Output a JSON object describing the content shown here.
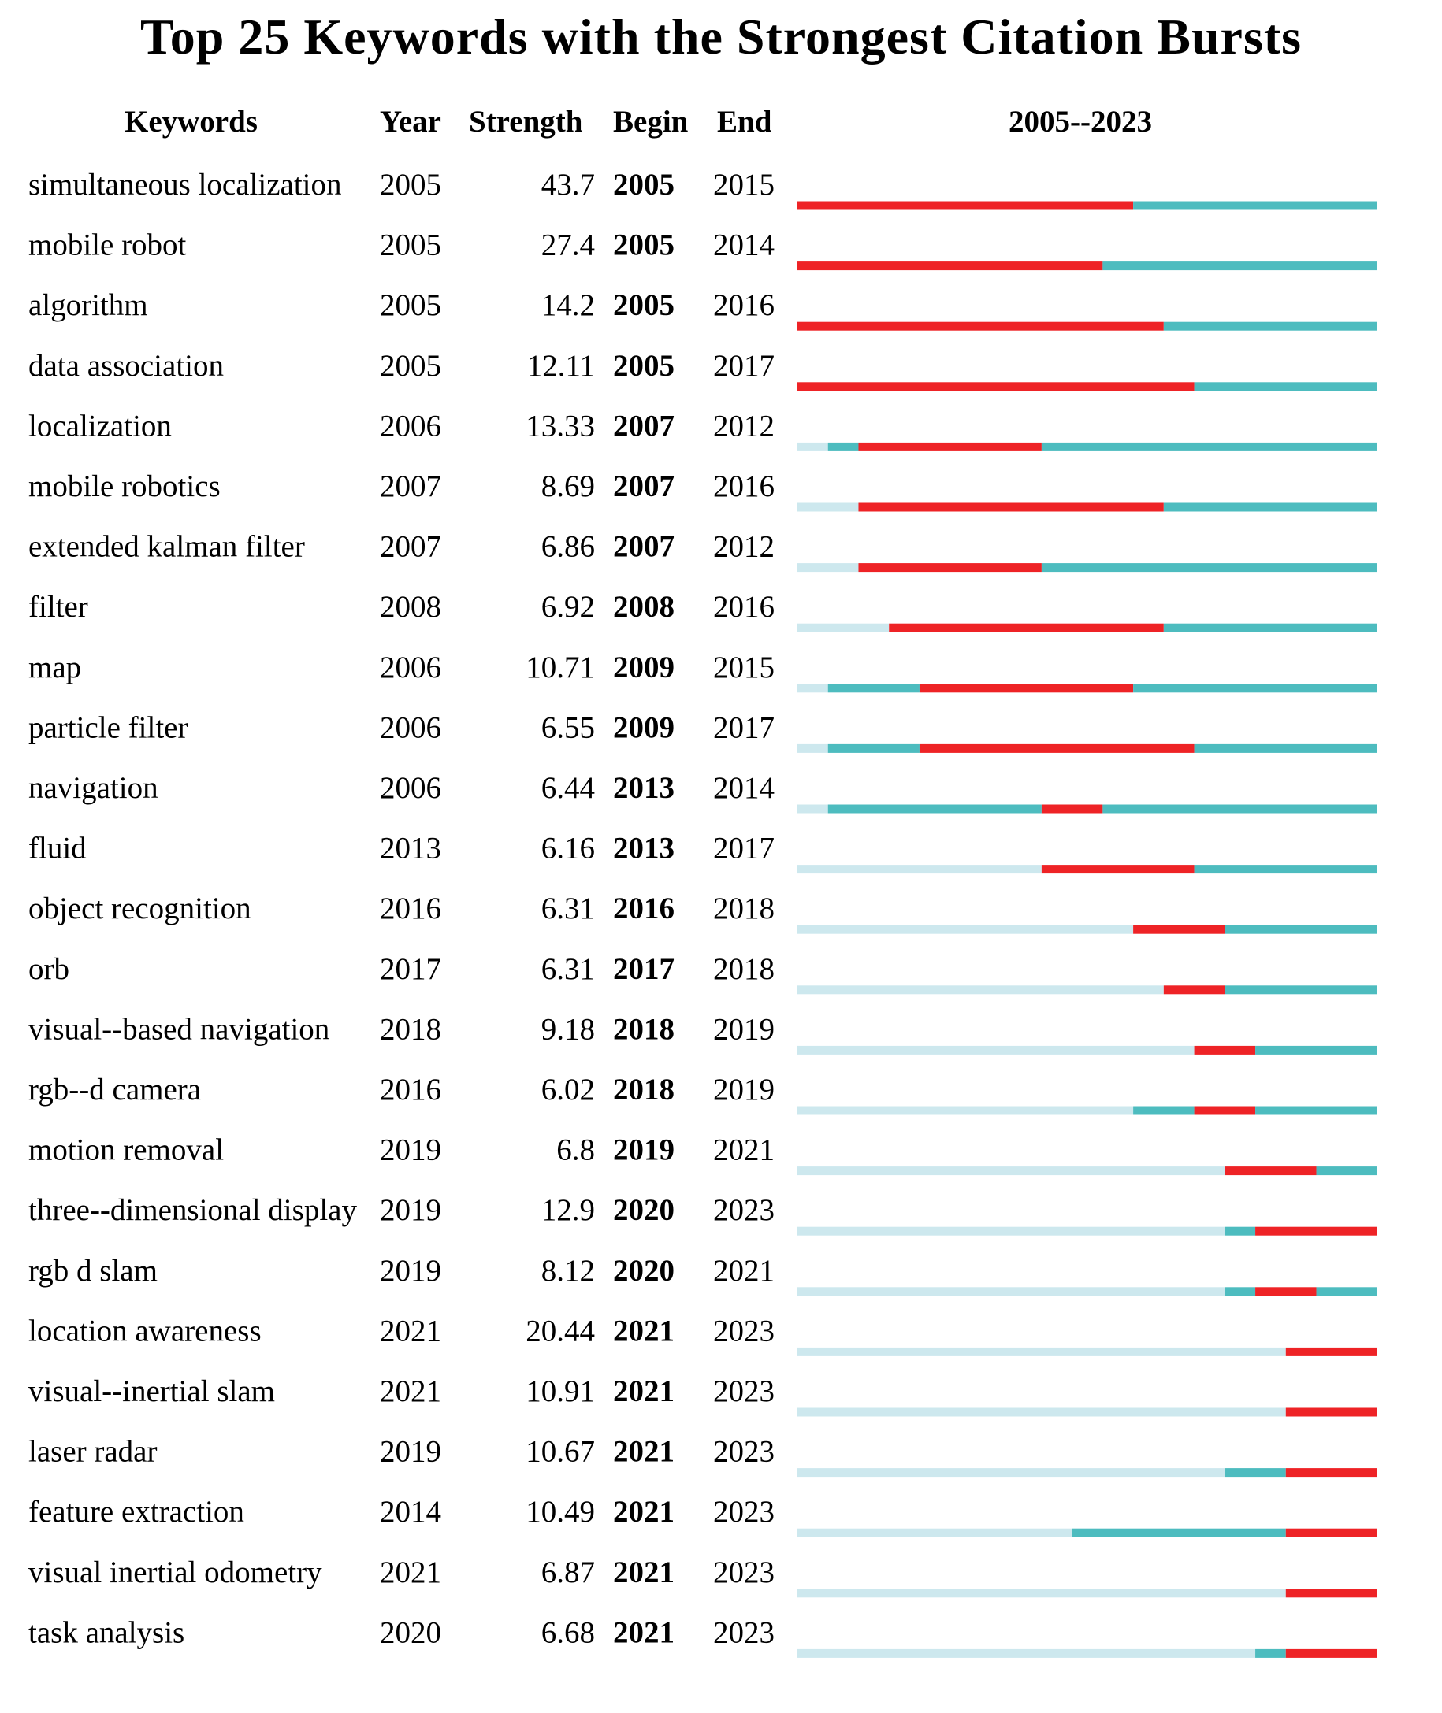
{
  "chart_data": {
    "type": "table",
    "title": "Top 25 Keywords with the Strongest Citation Bursts",
    "columns": [
      "Keywords",
      "Year",
      "Strength",
      "Begin",
      "End",
      "2005--2023"
    ],
    "range_label": "2005--2023",
    "range": [
      2005,
      2023
    ],
    "colors": {
      "burst": "#ee2326",
      "active": "#4dbcbf",
      "inactive": "#cde8ee"
    },
    "rows": [
      {
        "keyword": "simultaneous localization",
        "year": "2005",
        "strength": "43.7",
        "begin": "2005",
        "end": "2015"
      },
      {
        "keyword": "mobile robot",
        "year": "2005",
        "strength": "27.4",
        "begin": "2005",
        "end": "2014"
      },
      {
        "keyword": "algorithm",
        "year": "2005",
        "strength": "14.2",
        "begin": "2005",
        "end": "2016"
      },
      {
        "keyword": "data association",
        "year": "2005",
        "strength": "12.11",
        "begin": "2005",
        "end": "2017"
      },
      {
        "keyword": "localization",
        "year": "2006",
        "strength": "13.33",
        "begin": "2007",
        "end": "2012"
      },
      {
        "keyword": "mobile robotics",
        "year": "2007",
        "strength": "8.69",
        "begin": "2007",
        "end": "2016"
      },
      {
        "keyword": "extended kalman filter",
        "year": "2007",
        "strength": "6.86",
        "begin": "2007",
        "end": "2012"
      },
      {
        "keyword": "filter",
        "year": "2008",
        "strength": "6.92",
        "begin": "2008",
        "end": "2016"
      },
      {
        "keyword": "map",
        "year": "2006",
        "strength": "10.71",
        "begin": "2009",
        "end": "2015"
      },
      {
        "keyword": "particle filter",
        "year": "2006",
        "strength": "6.55",
        "begin": "2009",
        "end": "2017"
      },
      {
        "keyword": "navigation",
        "year": "2006",
        "strength": "6.44",
        "begin": "2013",
        "end": "2014"
      },
      {
        "keyword": "fluid",
        "year": "2013",
        "strength": "6.16",
        "begin": "2013",
        "end": "2017"
      },
      {
        "keyword": "object recognition",
        "year": "2016",
        "strength": "6.31",
        "begin": "2016",
        "end": "2018"
      },
      {
        "keyword": "orb",
        "year": "2017",
        "strength": "6.31",
        "begin": "2017",
        "end": "2018"
      },
      {
        "keyword": "visual--based navigation",
        "year": "2018",
        "strength": "9.18",
        "begin": "2018",
        "end": "2019"
      },
      {
        "keyword": "rgb--d camera",
        "year": "2016",
        "strength": "6.02",
        "begin": "2018",
        "end": "2019"
      },
      {
        "keyword": "motion removal",
        "year": "2019",
        "strength": "6.8",
        "begin": "2019",
        "end": "2021"
      },
      {
        "keyword": "three--dimensional display",
        "year": "2019",
        "strength": "12.9",
        "begin": "2020",
        "end": "2023"
      },
      {
        "keyword": "rgb d slam",
        "year": "2019",
        "strength": "8.12",
        "begin": "2020",
        "end": "2021"
      },
      {
        "keyword": "location awareness",
        "year": "2021",
        "strength": "20.44",
        "begin": "2021",
        "end": "2023"
      },
      {
        "keyword": "visual--inertial slam",
        "year": "2021",
        "strength": "10.91",
        "begin": "2021",
        "end": "2023"
      },
      {
        "keyword": "laser radar",
        "year": "2019",
        "strength": "10.67",
        "begin": "2021",
        "end": "2023"
      },
      {
        "keyword": "feature extraction",
        "year": "2014",
        "strength": "10.49",
        "begin": "2021",
        "end": "2023"
      },
      {
        "keyword": "visual inertial odometry",
        "year": "2021",
        "strength": "6.87",
        "begin": "2021",
        "end": "2023"
      },
      {
        "keyword": "task analysis",
        "year": "2020",
        "strength": "6.68",
        "begin": "2021",
        "end": "2023"
      }
    ]
  }
}
